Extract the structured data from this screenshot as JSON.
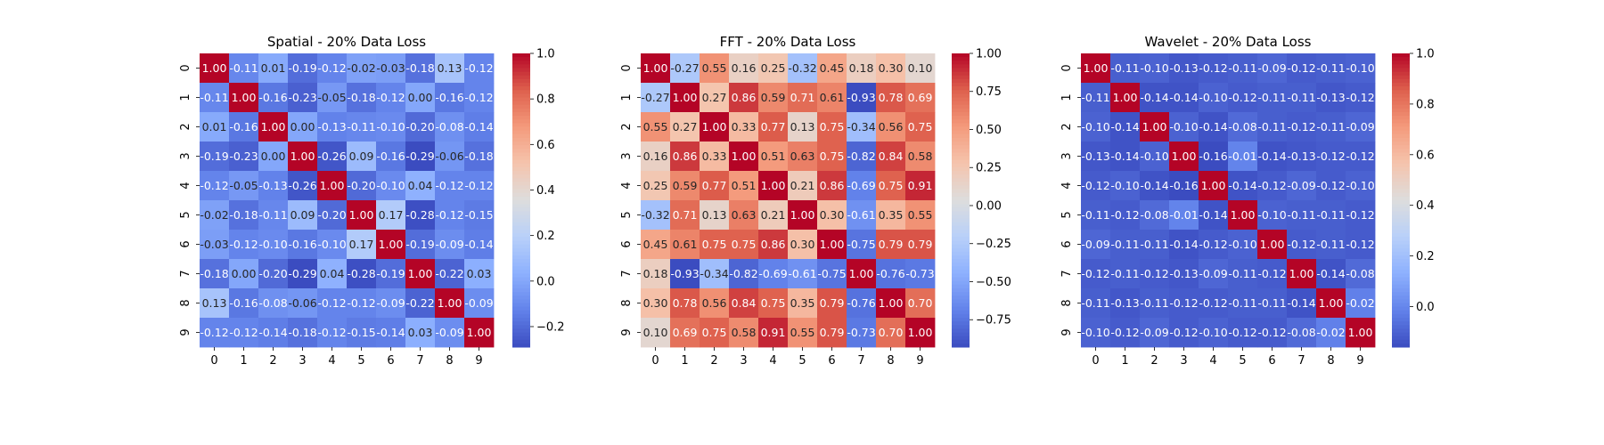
{
  "chart_data": [
    {
      "type": "heatmap",
      "title": "Spatial - 20% Data Loss",
      "x_ticks": [
        "0",
        "1",
        "2",
        "3",
        "4",
        "5",
        "6",
        "7",
        "8",
        "9"
      ],
      "y_ticks": [
        "0",
        "1",
        "2",
        "3",
        "4",
        "5",
        "6",
        "7",
        "8",
        "9"
      ],
      "colormap": "coolwarm",
      "vmin": -0.29,
      "vmax": 1.0,
      "colorbar_ticks": [
        -0.2,
        0.0,
        0.2,
        0.4,
        0.6,
        0.8,
        1.0
      ],
      "colorbar_tick_labels": [
        "−0.2",
        "0.0",
        "0.2",
        "0.4",
        "0.6",
        "0.8",
        "1.0"
      ],
      "values": [
        [
          1.0,
          -0.11,
          0.01,
          -0.19,
          -0.12,
          -0.02,
          -0.03,
          -0.18,
          0.13,
          -0.12
        ],
        [
          -0.11,
          1.0,
          -0.16,
          -0.23,
          -0.05,
          -0.18,
          -0.12,
          -0.0,
          -0.16,
          -0.12
        ],
        [
          0.01,
          -0.16,
          1.0,
          0.0,
          -0.13,
          -0.11,
          -0.1,
          -0.2,
          -0.08,
          -0.14
        ],
        [
          -0.19,
          -0.23,
          0.0,
          1.0,
          -0.26,
          0.09,
          -0.16,
          -0.29,
          -0.06,
          -0.18
        ],
        [
          -0.12,
          -0.05,
          -0.13,
          -0.26,
          1.0,
          -0.2,
          -0.1,
          0.04,
          -0.12,
          -0.12
        ],
        [
          -0.02,
          -0.18,
          -0.11,
          0.09,
          -0.2,
          1.0,
          0.17,
          -0.28,
          -0.12,
          -0.15
        ],
        [
          -0.03,
          -0.12,
          -0.1,
          -0.16,
          -0.1,
          0.17,
          1.0,
          -0.19,
          -0.09,
          -0.14
        ],
        [
          -0.18,
          -0.0,
          -0.2,
          -0.29,
          0.04,
          -0.28,
          -0.19,
          1.0,
          -0.22,
          0.03
        ],
        [
          0.13,
          -0.16,
          -0.08,
          -0.06,
          -0.12,
          -0.12,
          -0.09,
          -0.22,
          1.0,
          -0.09
        ],
        [
          -0.12,
          -0.12,
          -0.14,
          -0.18,
          -0.12,
          -0.15,
          -0.14,
          0.03,
          -0.09,
          1.0
        ]
      ]
    },
    {
      "type": "heatmap",
      "title": "FFT - 20% Data Loss",
      "x_ticks": [
        "0",
        "1",
        "2",
        "3",
        "4",
        "5",
        "6",
        "7",
        "8",
        "9"
      ],
      "y_ticks": [
        "0",
        "1",
        "2",
        "3",
        "4",
        "5",
        "6",
        "7",
        "8",
        "9"
      ],
      "colormap": "coolwarm",
      "vmin": -0.93,
      "vmax": 1.0,
      "colorbar_ticks": [
        -0.75,
        -0.5,
        -0.25,
        0.0,
        0.25,
        0.5,
        0.75,
        1.0
      ],
      "colorbar_tick_labels": [
        "−0.75",
        "−0.50",
        "−0.25",
        "0.00",
        "0.25",
        "0.50",
        "0.75",
        "1.00"
      ],
      "values": [
        [
          1.0,
          -0.27,
          0.55,
          0.16,
          0.25,
          -0.32,
          0.45,
          0.18,
          0.3,
          0.1
        ],
        [
          -0.27,
          1.0,
          0.27,
          0.86,
          0.59,
          0.71,
          0.61,
          -0.93,
          0.78,
          0.69
        ],
        [
          0.55,
          0.27,
          1.0,
          0.33,
          0.77,
          0.13,
          0.75,
          -0.34,
          0.56,
          0.75
        ],
        [
          0.16,
          0.86,
          0.33,
          1.0,
          0.51,
          0.63,
          0.75,
          -0.82,
          0.84,
          0.58
        ],
        [
          0.25,
          0.59,
          0.77,
          0.51,
          1.0,
          0.21,
          0.86,
          -0.69,
          0.75,
          0.91
        ],
        [
          -0.32,
          0.71,
          0.13,
          0.63,
          0.21,
          1.0,
          0.3,
          -0.61,
          0.35,
          0.55
        ],
        [
          0.45,
          0.61,
          0.75,
          0.75,
          0.86,
          0.3,
          1.0,
          -0.75,
          0.79,
          0.79
        ],
        [
          0.18,
          -0.93,
          -0.34,
          -0.82,
          -0.69,
          -0.61,
          -0.75,
          1.0,
          -0.76,
          -0.73
        ],
        [
          0.3,
          0.78,
          0.56,
          0.84,
          0.75,
          0.35,
          0.79,
          -0.76,
          1.0,
          0.7
        ],
        [
          0.1,
          0.69,
          0.75,
          0.58,
          0.91,
          0.55,
          0.79,
          -0.73,
          0.7,
          1.0
        ]
      ]
    },
    {
      "type": "heatmap",
      "title": "Wavelet - 20% Data Loss",
      "x_ticks": [
        "0",
        "1",
        "2",
        "3",
        "4",
        "5",
        "6",
        "7",
        "8",
        "9"
      ],
      "y_ticks": [
        "0",
        "1",
        "2",
        "3",
        "4",
        "5",
        "6",
        "7",
        "8",
        "9"
      ],
      "colormap": "coolwarm",
      "vmin": -0.16,
      "vmax": 1.0,
      "colorbar_ticks": [
        0.0,
        0.2,
        0.4,
        0.6,
        0.8,
        1.0
      ],
      "colorbar_tick_labels": [
        "0.0",
        "0.2",
        "0.4",
        "0.6",
        "0.8",
        "1.0"
      ],
      "values": [
        [
          1.0,
          -0.11,
          -0.1,
          -0.13,
          -0.12,
          -0.11,
          -0.09,
          -0.12,
          -0.11,
          -0.1
        ],
        [
          -0.11,
          1.0,
          -0.14,
          -0.14,
          -0.1,
          -0.12,
          -0.11,
          -0.11,
          -0.13,
          -0.12
        ],
        [
          -0.1,
          -0.14,
          1.0,
          -0.1,
          -0.14,
          -0.08,
          -0.11,
          -0.12,
          -0.11,
          -0.09
        ],
        [
          -0.13,
          -0.14,
          -0.1,
          1.0,
          -0.16,
          -0.01,
          -0.14,
          -0.13,
          -0.12,
          -0.12
        ],
        [
          -0.12,
          -0.1,
          -0.14,
          -0.16,
          1.0,
          -0.14,
          -0.12,
          -0.09,
          -0.12,
          -0.1
        ],
        [
          -0.11,
          -0.12,
          -0.08,
          -0.01,
          -0.14,
          1.0,
          -0.1,
          -0.11,
          -0.11,
          -0.12
        ],
        [
          -0.09,
          -0.11,
          -0.11,
          -0.14,
          -0.12,
          -0.1,
          1.0,
          -0.12,
          -0.11,
          -0.12
        ],
        [
          -0.12,
          -0.11,
          -0.12,
          -0.13,
          -0.09,
          -0.11,
          -0.12,
          1.0,
          -0.14,
          -0.08
        ],
        [
          -0.11,
          -0.13,
          -0.11,
          -0.12,
          -0.12,
          -0.11,
          -0.11,
          -0.14,
          1.0,
          -0.02
        ],
        [
          -0.1,
          -0.12,
          -0.09,
          -0.12,
          -0.1,
          -0.12,
          -0.12,
          -0.08,
          -0.02,
          1.0
        ]
      ]
    }
  ]
}
